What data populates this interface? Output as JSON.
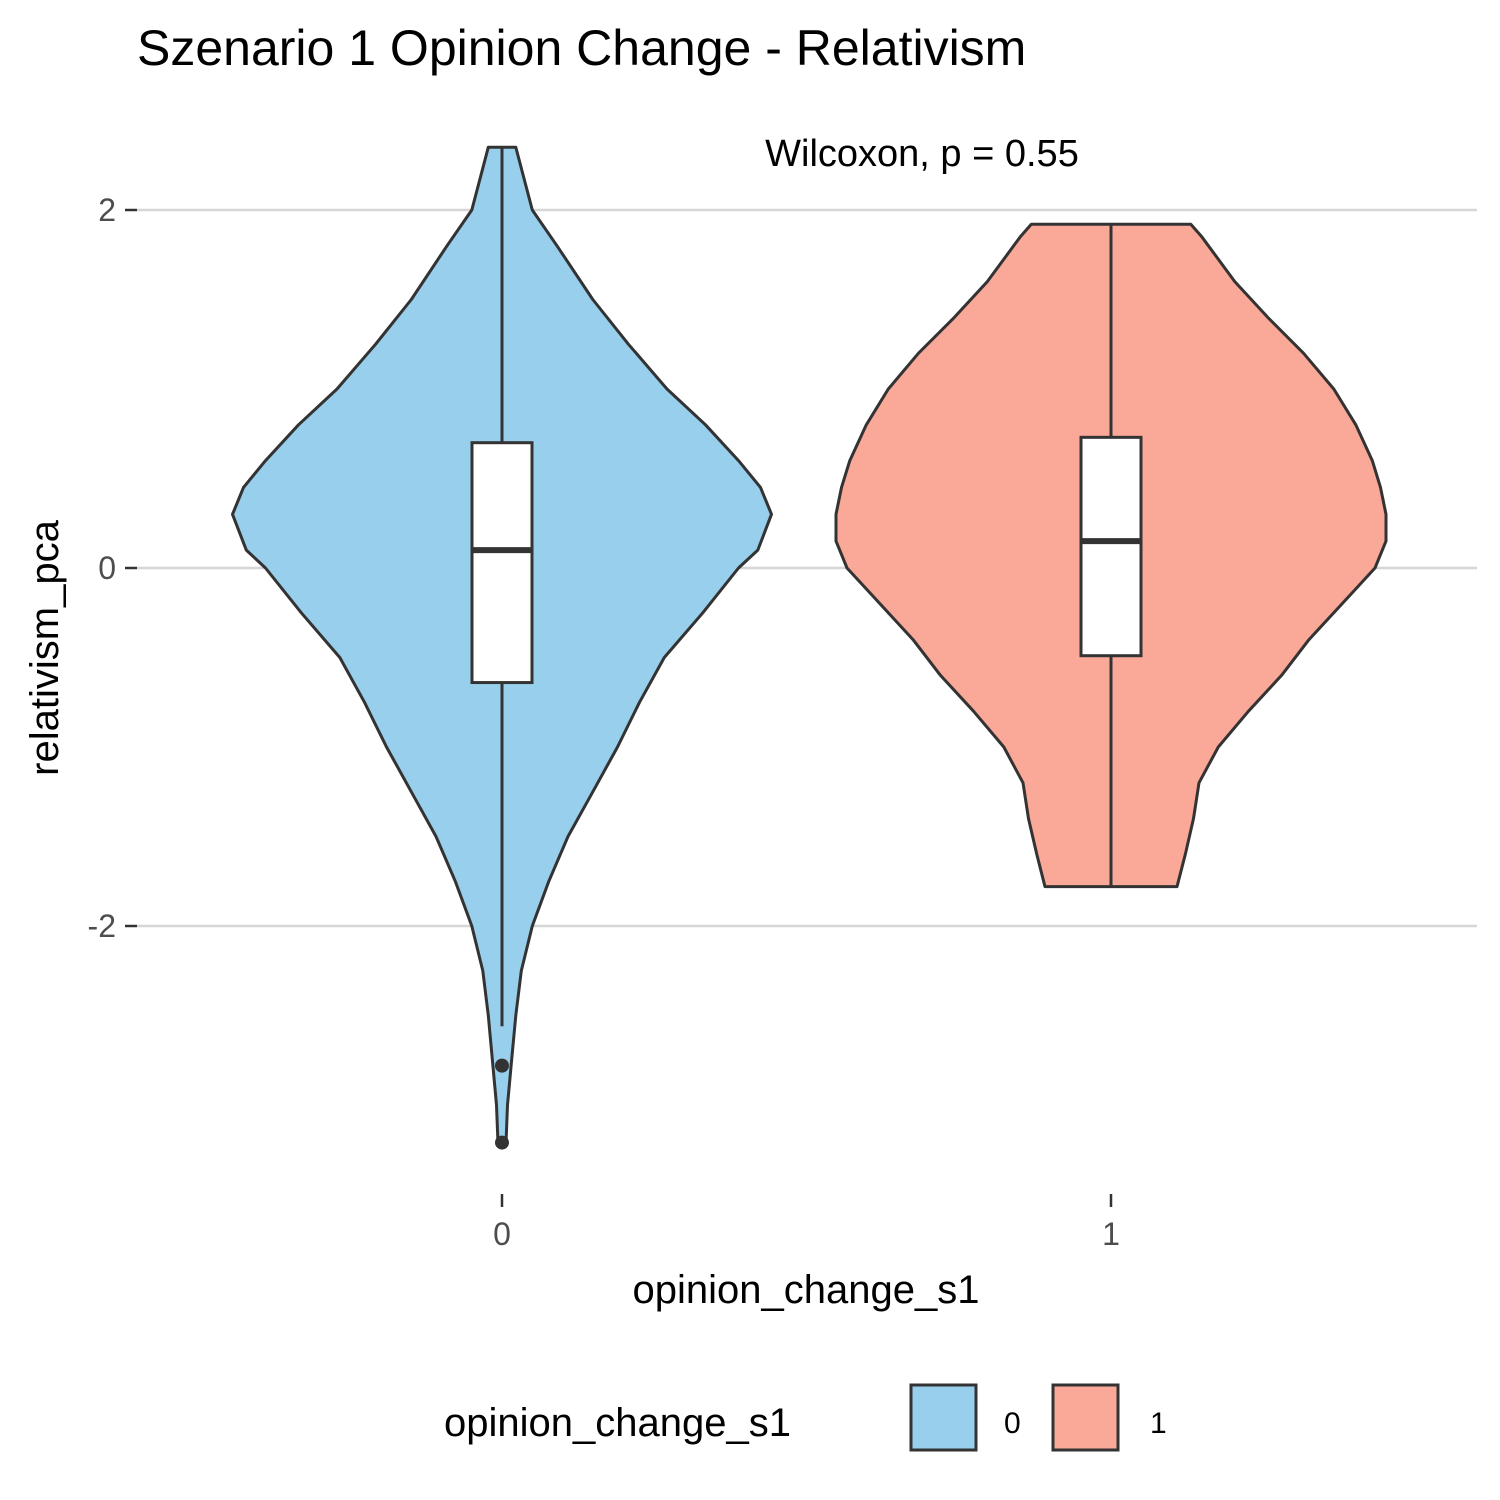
{
  "chart_data": {
    "type": "violin",
    "title": "Szenario 1 Opinion Change - Relativism",
    "annotation": "Wilcoxon, p = 0.55",
    "xlabel": "opinion_change_s1",
    "ylabel": "relativism_pca",
    "y_ticks": [
      2,
      0,
      -2
    ],
    "y_tick_labels": [
      "2",
      "0",
      "-2"
    ],
    "ylim": [
      -3.45,
      2.65
    ],
    "categories": [
      "0",
      "1"
    ],
    "grid": "horizontal major lines",
    "legend": {
      "title": "opinion_change_s1",
      "position": "bottom",
      "entries": [
        "0",
        "1"
      ]
    },
    "series": [
      {
        "name": "0",
        "color": "#98CFEC",
        "box": {
          "whisker_low": -2.56,
          "q1": -0.64,
          "median": 0.1,
          "q3": 0.7,
          "whisker_high": 2.35
        },
        "outliers": [
          -2.78,
          -3.21
        ],
        "density_profile": [
          [
            2.35,
            0.05
          ],
          [
            2.0,
            0.11
          ],
          [
            1.8,
            0.2
          ],
          [
            1.5,
            0.33
          ],
          [
            1.25,
            0.46
          ],
          [
            1.0,
            0.6
          ],
          [
            0.8,
            0.74
          ],
          [
            0.6,
            0.86
          ],
          [
            0.45,
            0.94
          ],
          [
            0.3,
            0.98
          ],
          [
            0.1,
            0.93
          ],
          [
            0.0,
            0.86
          ],
          [
            -0.25,
            0.73
          ],
          [
            -0.5,
            0.59
          ],
          [
            -0.75,
            0.5
          ],
          [
            -1.0,
            0.42
          ],
          [
            -1.25,
            0.33
          ],
          [
            -1.5,
            0.24
          ],
          [
            -1.75,
            0.17
          ],
          [
            -2.0,
            0.11
          ],
          [
            -2.25,
            0.07
          ],
          [
            -2.5,
            0.05
          ],
          [
            -2.75,
            0.035
          ],
          [
            -3.0,
            0.02
          ],
          [
            -3.2,
            0.015
          ]
        ]
      },
      {
        "name": "1",
        "color": "#FAA898",
        "box": {
          "whisker_low": -1.78,
          "q1": -0.49,
          "median": 0.15,
          "q3": 0.73,
          "whisker_high": 1.92
        },
        "outliers": [],
        "density_profile": [
          [
            1.92,
            0.29
          ],
          [
            1.85,
            0.33
          ],
          [
            1.6,
            0.45
          ],
          [
            1.4,
            0.57
          ],
          [
            1.2,
            0.7
          ],
          [
            1.0,
            0.81
          ],
          [
            0.8,
            0.89
          ],
          [
            0.6,
            0.95
          ],
          [
            0.45,
            0.98
          ],
          [
            0.3,
            1.0
          ],
          [
            0.15,
            1.0
          ],
          [
            0.0,
            0.96
          ],
          [
            -0.15,
            0.87
          ],
          [
            -0.4,
            0.72
          ],
          [
            -0.6,
            0.62
          ],
          [
            -0.8,
            0.5
          ],
          [
            -1.0,
            0.39
          ],
          [
            -1.2,
            0.32
          ],
          [
            -1.4,
            0.3
          ],
          [
            -1.6,
            0.27
          ],
          [
            -1.78,
            0.24
          ]
        ]
      }
    ]
  }
}
